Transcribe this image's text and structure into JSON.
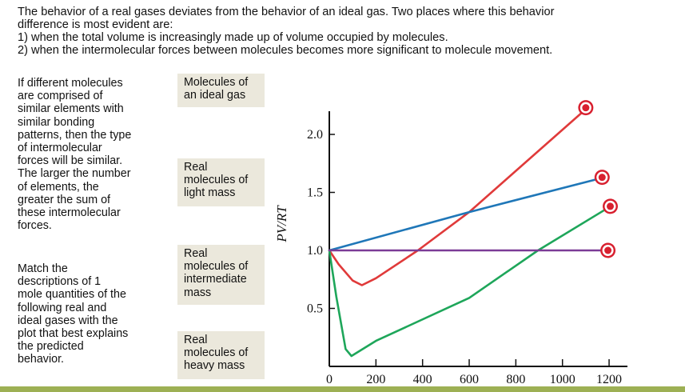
{
  "intro": {
    "line1": "The behavior of a real gases deviates from the behavior of an ideal gas.  Two places where this behavior",
    "line2": "difference is most evident are:",
    "line3": "1) when the total volume is increasingly made up of volume occupied by molecules.",
    "line4": "2) when the intermolecular forces between molecules becomes more significant to molecule movement."
  },
  "descriptions": {
    "hint": [
      "If different molecules",
      "are comprised of",
      "similar elements with",
      "similar bonding",
      "patterns, then the type",
      "of intermolecular",
      "forces will be similar.",
      "The larger the number",
      "of elements, the",
      "greater the sum of",
      "these intermolecular",
      "forces."
    ],
    "instructions": [
      "Match the",
      "descriptions of 1",
      "mole quantities of the",
      "following real and",
      "ideal gases with the",
      "plot that best explains",
      "the predicted",
      "behavior."
    ]
  },
  "drag_labels": [
    {
      "lines": [
        "Molecules of",
        "an ideal gas"
      ]
    },
    {
      "lines": [
        "Real",
        "molecules of",
        "light mass"
      ]
    },
    {
      "lines": [
        "Real",
        "molecules of",
        "intermediate",
        "mass"
      ]
    },
    {
      "lines": [
        "Real",
        "molecules of",
        "heavy mass"
      ]
    }
  ],
  "colors": {
    "label_bg": "#ebe8dc",
    "target_marker": "#d8202f",
    "bottom_band": "#9db054",
    "red": "#e03a3a",
    "blue": "#1f77b8",
    "green": "#1ea65a",
    "purple": "#7b3b96"
  },
  "chart_data": {
    "type": "line",
    "title": "",
    "xlabel": "",
    "ylabel": "PV/RT",
    "xlim": [
      0,
      1250
    ],
    "ylim": [
      0,
      2.2
    ],
    "x_ticks": [
      0,
      200,
      400,
      600,
      800,
      1000,
      1200
    ],
    "y_ticks": [
      0.5,
      1.0,
      1.5,
      2.0
    ],
    "x_tick_labels": [
      "0",
      "200",
      "400",
      "600",
      "800",
      "1000",
      "1200"
    ],
    "y_tick_labels": [
      "0.5",
      "1.0",
      "1.5",
      "2.0"
    ],
    "grid": false,
    "legend": "none (drop targets at line ends)",
    "series": [
      {
        "name": "red curve",
        "color": "#e03a3a",
        "points": [
          [
            0,
            1.0
          ],
          [
            40,
            0.88
          ],
          [
            100,
            0.74
          ],
          [
            140,
            0.7
          ],
          [
            200,
            0.76
          ],
          [
            380,
            1.0
          ],
          [
            600,
            1.33
          ],
          [
            1090,
            2.2
          ]
        ]
      },
      {
        "name": "blue line",
        "color": "#1f77b8",
        "points": [
          [
            0,
            1.0
          ],
          [
            600,
            1.33
          ],
          [
            1160,
            1.62
          ]
        ]
      },
      {
        "name": "green curve",
        "color": "#1ea65a",
        "points": [
          [
            0,
            1.0
          ],
          [
            30,
            0.6
          ],
          [
            70,
            0.15
          ],
          [
            95,
            0.09
          ],
          [
            200,
            0.22
          ],
          [
            600,
            0.59
          ],
          [
            895,
            1.0
          ],
          [
            1190,
            1.36
          ]
        ]
      },
      {
        "name": "purple line",
        "color": "#7b3b96",
        "points": [
          [
            0,
            1.0
          ],
          [
            1190,
            1.0
          ]
        ]
      }
    ],
    "drop_targets": [
      {
        "series": "red curve",
        "x": 1100,
        "y": 2.23
      },
      {
        "series": "blue line",
        "x": 1170,
        "y": 1.63
      },
      {
        "series": "green curve",
        "x": 1205,
        "y": 1.38
      },
      {
        "series": "purple line",
        "x": 1195,
        "y": 1.0
      }
    ]
  }
}
